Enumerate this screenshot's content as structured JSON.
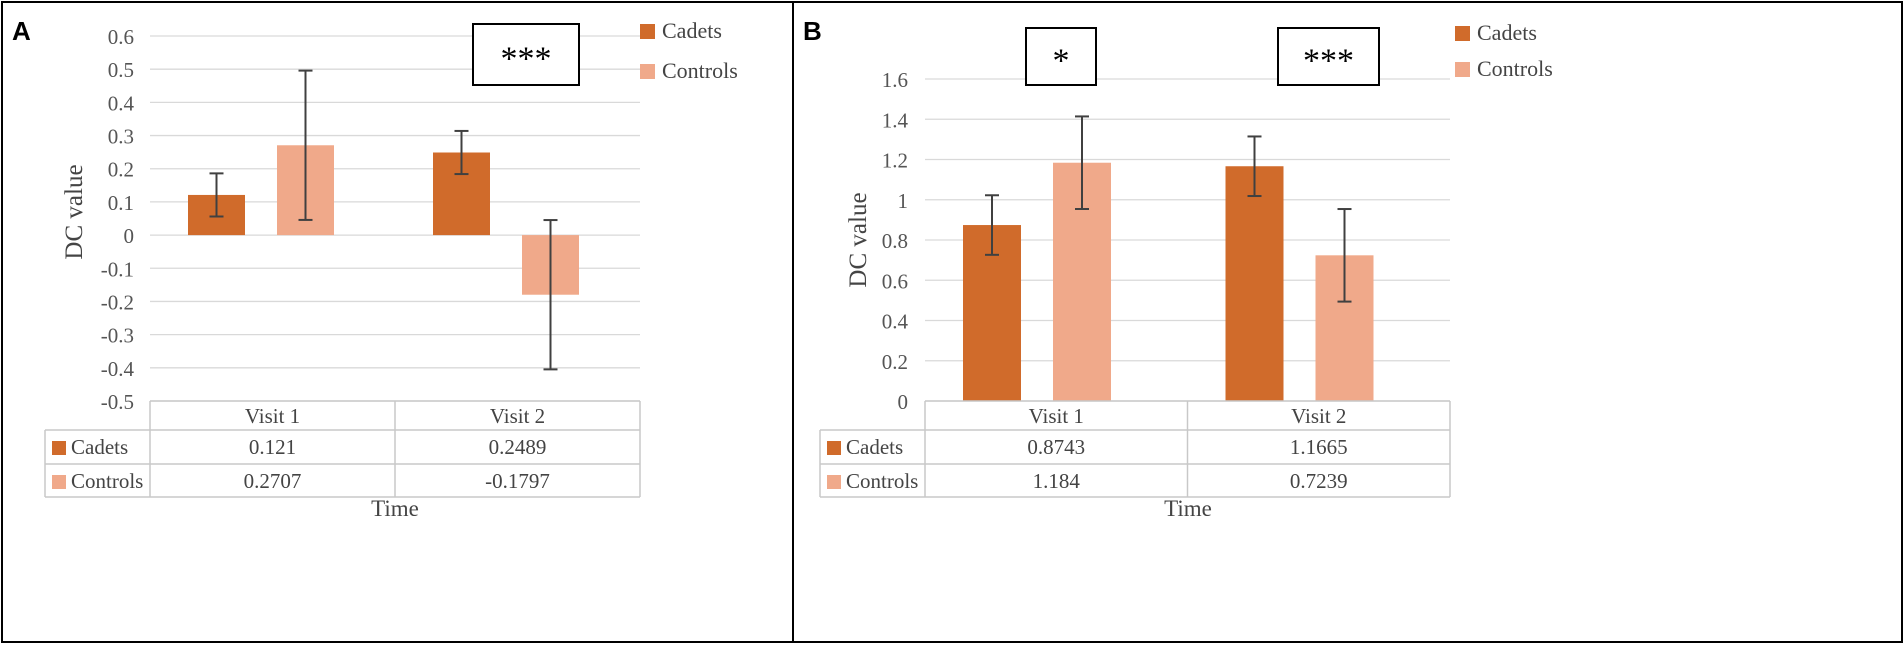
{
  "panels": [
    {
      "letter": "A",
      "chart_data": {
        "type": "bar",
        "title": "",
        "xlabel": "Time",
        "ylabel": "DC value",
        "ylim": [
          -0.5,
          0.6
        ],
        "yticks": [
          "0.6",
          "0.5",
          "0.4",
          "0.3",
          "0.2",
          "0.1",
          "0",
          "-0.1",
          "-0.2",
          "-0.3",
          "-0.4",
          "-0.5"
        ],
        "tick_values": [
          0.6,
          0.5,
          0.4,
          0.3,
          0.2,
          0.1,
          0,
          -0.1,
          -0.2,
          -0.3,
          -0.4,
          -0.5
        ],
        "categories": [
          "Visit 1",
          "Visit 2"
        ],
        "series": [
          {
            "name": "Cadets",
            "color": "#D06B2B",
            "values": [
              0.121,
              0.2489
            ],
            "value_labels": [
              "0.121",
              "0.2489"
            ],
            "err": [
              0.065,
              0.065
            ]
          },
          {
            "name": "Controls",
            "color": "#F0A98A",
            "values": [
              0.2707,
              -0.1797
            ],
            "value_labels": [
              "0.2707",
              "-0.1797"
            ],
            "err": [
              0.225,
              0.225
            ]
          }
        ],
        "significance": [
          {
            "category_index": 1,
            "label": "***"
          }
        ],
        "legend_position": "right",
        "grid": true
      }
    },
    {
      "letter": "B",
      "chart_data": {
        "type": "bar",
        "title": "",
        "xlabel": "Time",
        "ylabel": "DC value",
        "ylim": [
          0,
          1.6
        ],
        "yticks": [
          "1.6",
          "1.4",
          "1.2",
          "1",
          "0.8",
          "0.6",
          "0.4",
          "0.2",
          "0"
        ],
        "tick_values": [
          1.6,
          1.4,
          1.2,
          1.0,
          0.8,
          0.6,
          0.4,
          0.2,
          0
        ],
        "categories": [
          "Visit 1",
          "Visit 2"
        ],
        "series": [
          {
            "name": "Cadets",
            "color": "#D06B2B",
            "values": [
              0.8743,
              1.1665
            ],
            "value_labels": [
              "0.8743",
              "1.1665"
            ],
            "err": [
              0.148,
              0.148
            ]
          },
          {
            "name": "Controls",
            "color": "#F0A98A",
            "values": [
              1.184,
              0.7239
            ],
            "value_labels": [
              "1.184",
              "0.7239"
            ],
            "err": [
              0.23,
              0.23
            ]
          }
        ],
        "significance": [
          {
            "category_index": 0,
            "label": "*"
          },
          {
            "category_index": 1,
            "label": "***"
          }
        ],
        "legend_position": "right",
        "grid": true
      }
    }
  ]
}
